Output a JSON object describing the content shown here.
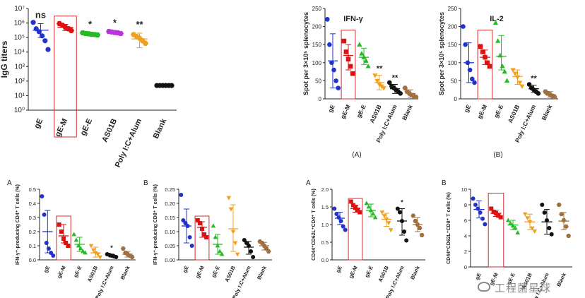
{
  "watermark": {
    "text": "工程菌星球"
  },
  "chart_data": [
    {
      "id": "igg",
      "type": "scatter",
      "ylabel": "IgG titers",
      "yscale": "log",
      "yticks": [
        "10⁰",
        "10¹",
        "10²",
        "10³",
        "10⁴",
        "10⁵",
        "10⁶",
        "10⁷"
      ],
      "ylim": [
        1,
        10000000
      ],
      "categories": [
        "gE",
        "gE-M",
        "gE-E",
        "AS01B",
        "Poly I:C+Alum",
        "Blank"
      ],
      "colors": [
        "#2233cc",
        "#dd1111",
        "#22bb22",
        "#bb33dd",
        "#f0a020",
        "#111111"
      ],
      "points": [
        [
          1100000,
          400000,
          250000,
          130000,
          60000,
          15000
        ],
        [
          900000,
          700000,
          500000,
          400000,
          300000
        ],
        [
          210000,
          190000,
          180000,
          170000,
          160000,
          150000
        ],
        [
          260000,
          240000,
          220000,
          210000,
          190000
        ],
        [
          160000,
          120000,
          90000,
          60000,
          40000
        ],
        [
          50,
          50,
          50,
          50,
          50,
          50
        ]
      ],
      "mean": [
        320000,
        500000,
        180000,
        230000,
        80000,
        50
      ],
      "err": [
        [
          100000,
          900000
        ],
        [
          300000,
          800000
        ],
        [
          150000,
          210000
        ],
        [
          180000,
          260000
        ],
        [
          20000,
          200000
        ],
        [
          50,
          50
        ]
      ],
      "sig": [
        "ns",
        "",
        "*",
        "*",
        "**",
        ""
      ],
      "highlight": 1
    },
    {
      "id": "ifn",
      "type": "scatter",
      "title": "IFN-γ",
      "ylabel": "Spot per 3×10⁵ splenocytes",
      "ylim": [
        0,
        250
      ],
      "yticks": [
        "0",
        "50",
        "100",
        "150",
        "200",
        "250"
      ],
      "categories": [
        "gE",
        "gE-M",
        "gE-E",
        "AS01B",
        "Poly I:C+Alum",
        "Blank"
      ],
      "colors": [
        "#2233cc",
        "#dd1111",
        "#22bb22",
        "#f0a020",
        "#111111",
        "#a07040"
      ],
      "points": [
        [
          220,
          150,
          100,
          80,
          50,
          30
        ],
        [
          160,
          130,
          110,
          90,
          70
        ],
        [
          150,
          125,
          115,
          105,
          90
        ],
        [
          65,
          50,
          40,
          35,
          30
        ],
        [
          45,
          35,
          30,
          25,
          20,
          15
        ],
        [
          30,
          20,
          15,
          10,
          8,
          5
        ]
      ],
      "mean": [
        105,
        120,
        115,
        45,
        28,
        15
      ],
      "err": [
        [
          30,
          180
        ],
        [
          80,
          150
        ],
        [
          95,
          140
        ],
        [
          25,
          65
        ],
        [
          15,
          40
        ],
        [
          5,
          25
        ]
      ],
      "sig": [
        "",
        "",
        "",
        "**",
        "**",
        ""
      ],
      "highlight": 1,
      "caption": "(A)"
    },
    {
      "id": "il2",
      "type": "scatter",
      "title": "IL-2",
      "ylabel": "Spot per 3×10⁵ splenocytes",
      "ylim": [
        0,
        250
      ],
      "yticks": [
        "0",
        "50",
        "100",
        "150",
        "200",
        "250"
      ],
      "categories": [
        "gE",
        "gE-M",
        "gE-E",
        "AS01B",
        "Poly I:C+Alum",
        "Blank"
      ],
      "colors": [
        "#2233cc",
        "#dd1111",
        "#22bb22",
        "#f0a020",
        "#111111",
        "#a07040"
      ],
      "points": [
        [
          200,
          150,
          100,
          80,
          55,
          45
        ],
        [
          145,
          130,
          115,
          100,
          90
        ],
        [
          210,
          160,
          120,
          90,
          75,
          50
        ],
        [
          80,
          70,
          60,
          45,
          35
        ],
        [
          40,
          30,
          25,
          20,
          15
        ],
        [
          20,
          15,
          12,
          8,
          5
        ]
      ],
      "mean": [
        100,
        115,
        118,
        62,
        28,
        12
      ],
      "err": [
        [
          45,
          155
        ],
        [
          95,
          135
        ],
        [
          80,
          175
        ],
        [
          40,
          80
        ],
        [
          18,
          38
        ],
        [
          5,
          20
        ]
      ],
      "sig": [
        "",
        "",
        "",
        "",
        "**",
        ""
      ],
      "highlight": 1,
      "caption": "(B)"
    },
    {
      "id": "cd4ifn",
      "type": "scatter",
      "panel": "A",
      "ylabel": "IFN-γ⁺-producing CD4⁺ T cells (%)",
      "ylim": [
        0,
        0.5
      ],
      "yticks": [
        "0.0",
        "0.1",
        "0.2",
        "0.3",
        "0.4",
        "0.5"
      ],
      "categories": [
        "gE",
        "gE-M",
        "gE-E",
        "AS01B",
        "Poly I:C+Alum",
        "Blank"
      ],
      "colors": [
        "#2233cc",
        "#dd1111",
        "#22bb22",
        "#f0a020",
        "#111111",
        "#a07040"
      ],
      "points": [
        [
          0.45,
          0.32,
          0.12,
          0.08,
          0.05,
          0.03
        ],
        [
          0.25,
          0.2,
          0.15,
          0.12,
          0.1
        ],
        [
          0.18,
          0.14,
          0.1,
          0.08,
          0.06,
          0.05
        ],
        [
          0.1,
          0.07,
          0.05,
          0.04,
          0.02
        ],
        [
          0.04,
          0.035,
          0.03,
          0.025,
          0.02
        ],
        [
          0.08,
          0.05,
          0.04,
          0.03,
          0.02
        ]
      ],
      "mean": [
        0.2,
        0.17,
        0.11,
        0.05,
        0.03,
        0.04
      ],
      "err": [
        [
          0.05,
          0.35
        ],
        [
          0.12,
          0.25
        ],
        [
          0.06,
          0.16
        ],
        [
          0.02,
          0.09
        ],
        [
          0.02,
          0.04
        ],
        [
          0.02,
          0.06
        ]
      ],
      "sig": [
        "",
        "",
        "",
        "",
        "*",
        ""
      ],
      "highlight": 1
    },
    {
      "id": "cd8ifn",
      "type": "scatter",
      "panel": "B",
      "ylabel": "IFN-γ⁺-producing CD8⁺ T cells (%)",
      "ylim": [
        0,
        0.25
      ],
      "yticks": [
        "0.00",
        "0.05",
        "0.10",
        "0.15",
        "0.20",
        "0.25"
      ],
      "categories": [
        "gE",
        "gE-M",
        "gE-E",
        "AS01B",
        "Poly I:C+Alum",
        "Blank"
      ],
      "colors": [
        "#2233cc",
        "#dd1111",
        "#22bb22",
        "#f0a020",
        "#111111",
        "#a07040"
      ],
      "points": [
        [
          0.23,
          0.14,
          0.13,
          0.12,
          0.08,
          0.05
        ],
        [
          0.14,
          0.13,
          0.11,
          0.09,
          0.08
        ],
        [
          0.12,
          0.08,
          0.05,
          0.03,
          0.02
        ],
        [
          0.22,
          0.18,
          0.1,
          0.06,
          0.02
        ],
        [
          0.07,
          0.06,
          0.05,
          0.03,
          0.01
        ],
        [
          0.065,
          0.06,
          0.05,
          0.04,
          0.03
        ]
      ],
      "mean": [
        0.12,
        0.115,
        0.055,
        0.11,
        0.045,
        0.05
      ],
      "err": [
        [
          0.06,
          0.18
        ],
        [
          0.08,
          0.135
        ],
        [
          0.02,
          0.09
        ],
        [
          0.03,
          0.195
        ],
        [
          0.02,
          0.065
        ],
        [
          0.035,
          0.062
        ]
      ],
      "sig": [
        "",
        "",
        "",
        "",
        "",
        ""
      ],
      "highlight": 1
    },
    {
      "id": "cd4mem",
      "type": "scatter",
      "panel": "A",
      "ylabel": "CD44⁺CD62L⁺CD4⁺ T cells (%)",
      "ylim": [
        0,
        2.0
      ],
      "yticks": [
        "0.0",
        "0.5",
        "1.0",
        "1.5",
        "2.0"
      ],
      "categories": [
        "gE",
        "gE-M",
        "gE-E",
        "AS01B",
        "Poly I:C+Alum",
        "Blank"
      ],
      "colors": [
        "#2233cc",
        "#dd1111",
        "#22bb22",
        "#f0a020",
        "#111111",
        "#a07040"
      ],
      "points": [
        [
          1.45,
          1.3,
          1.2,
          1.1,
          0.95,
          0.85
        ],
        [
          1.65,
          1.55,
          1.48,
          1.42,
          1.35
        ],
        [
          1.6,
          1.5,
          1.4,
          1.3,
          1.2
        ],
        [
          1.35,
          1.25,
          1.15,
          1.05,
          0.85
        ],
        [
          1.45,
          1.35,
          1.1,
          0.8,
          0.55
        ],
        [
          1.25,
          1.1,
          1.0,
          0.9,
          0.7
        ]
      ],
      "mean": [
        1.18,
        1.45,
        1.4,
        1.15,
        1.1,
        1.0
      ],
      "err": [
        [
          1.0,
          1.35
        ],
        [
          1.35,
          1.55
        ],
        [
          1.22,
          1.58
        ],
        [
          0.95,
          1.32
        ],
        [
          0.7,
          1.45
        ],
        [
          0.8,
          1.2
        ]
      ],
      "sig": [
        "",
        "",
        "",
        "",
        "*",
        ""
      ],
      "highlight": 1
    },
    {
      "id": "cd8mem",
      "type": "scatter",
      "panel": "B",
      "ylabel": "CD44⁺CD62L⁺CD8⁺ T cells (%)",
      "ylim": [
        0,
        10
      ],
      "yticks": [
        "0",
        "2",
        "4",
        "6",
        "8",
        "10"
      ],
      "categories": [
        "gE",
        "gE-M",
        "gE-E",
        "AS01B",
        "Poly I:C+Alum",
        "Blank"
      ],
      "colors": [
        "#2233cc",
        "#dd1111",
        "#22bb22",
        "#f0a020",
        "#111111",
        "#a07040"
      ],
      "points": [
        [
          8.8,
          8.0,
          7.5,
          7.0,
          6.2,
          5.5
        ],
        [
          7.5,
          7.1,
          6.9,
          6.6,
          6.4
        ],
        [
          6.0,
          5.6,
          5.3,
          5.0,
          4.4
        ],
        [
          6.8,
          6.3,
          5.8,
          5.0,
          4.6
        ],
        [
          8.0,
          7.0,
          6.0,
          5.0,
          4.2
        ],
        [
          8.0,
          6.8,
          6.0,
          5.2,
          4.0
        ]
      ],
      "mean": [
        7.4,
        6.9,
        5.4,
        5.8,
        5.8,
        5.9
      ],
      "err": [
        [
          6.3,
          8.5
        ],
        [
          6.5,
          7.3
        ],
        [
          4.8,
          6.0
        ],
        [
          4.8,
          6.8
        ],
        [
          4.2,
          7.4
        ],
        [
          4.8,
          7.0
        ]
      ],
      "sig": [
        "",
        "",
        "",
        "",
        "",
        ""
      ],
      "highlight": 1
    }
  ]
}
